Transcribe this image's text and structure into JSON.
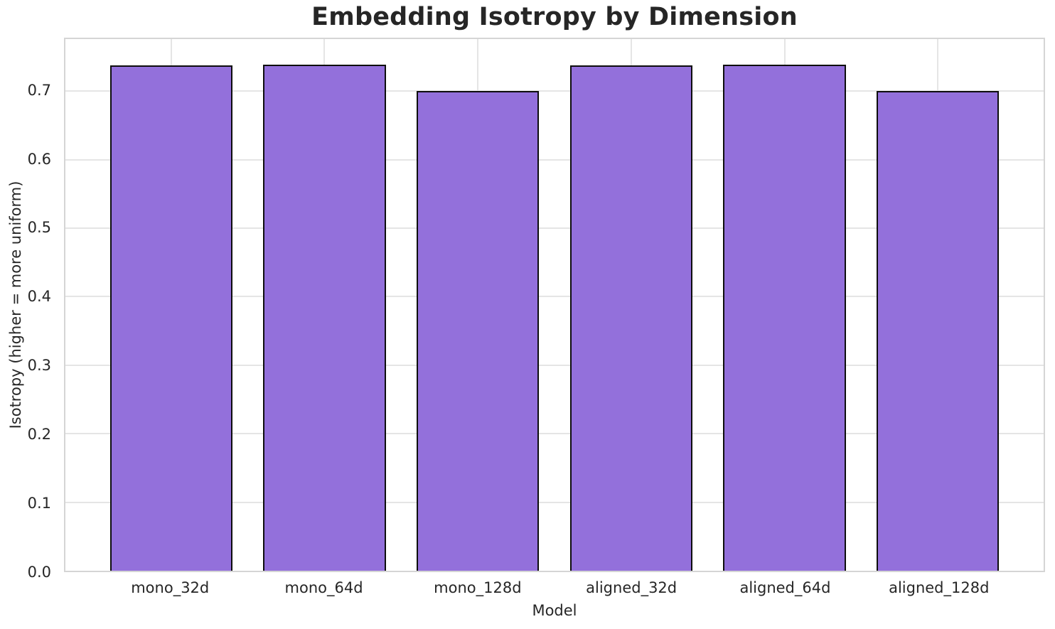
{
  "chart_data": {
    "type": "bar",
    "title": "Embedding Isotropy by Dimension",
    "xlabel": "Model",
    "ylabel": "Isotropy (higher = more uniform)",
    "categories": [
      "mono_32d",
      "mono_64d",
      "mono_128d",
      "aligned_32d",
      "aligned_64d",
      "aligned_128d"
    ],
    "values": [
      0.738,
      0.739,
      0.7,
      0.738,
      0.739,
      0.7
    ],
    "yticks": [
      0.0,
      0.1,
      0.2,
      0.3,
      0.4,
      0.5,
      0.6,
      0.7
    ],
    "ytick_labels": [
      "0.0",
      "0.1",
      "0.2",
      "0.3",
      "0.4",
      "0.5",
      "0.6",
      "0.7"
    ],
    "ylim": [
      0,
      0.776
    ],
    "grid": true,
    "legend_position": "none",
    "colors": {
      "bar_fill": "#9370DB",
      "bar_edge": "#0d0d0d",
      "grid": "#e5e5e5",
      "spine": "#d5d5d5",
      "text": "#262626",
      "background": "#ffffff"
    }
  }
}
